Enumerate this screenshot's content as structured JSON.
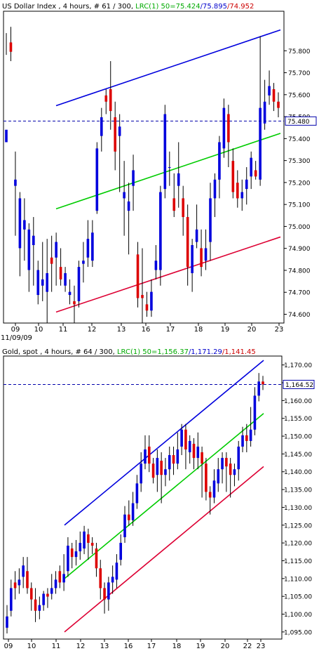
{
  "chart_data": [
    {
      "type": "candlestick",
      "title_parts": [
        {
          "text": "US Dollar Index , 4 hours, # 61 / 300, ",
          "color": "#000000"
        },
        {
          "text": "LRC(1) 50=75.424",
          "color": "#00aa00"
        },
        {
          "text": "/75.895",
          "color": "#0000cc"
        },
        {
          "text": "/74.952",
          "color": "#cc0000"
        }
      ],
      "ylim": [
        74.56,
        75.98
      ],
      "yticks": [
        "75.800",
        "75.700",
        "75.600",
        "75.500",
        "75.400",
        "75.300",
        "75.200",
        "75.100",
        "75.000",
        "74.900",
        "74.800",
        "74.700",
        "74.600"
      ],
      "ytick_values": [
        75.8,
        75.7,
        75.6,
        75.5,
        75.4,
        75.3,
        75.2,
        75.1,
        75.0,
        74.9,
        74.8,
        74.7,
        74.6
      ],
      "x_labels": [
        "09",
        "10",
        "11",
        "12",
        "13",
        "16",
        "17",
        "18",
        "19",
        "20",
        "23"
      ],
      "x_label_positions": [
        22,
        55,
        90,
        131,
        173,
        208,
        243,
        283,
        321,
        359,
        398
      ],
      "current_price": 75.48,
      "current_price_label": "75.480",
      "bars_count": 61,
      "regression": {
        "mid": [
          75.08,
          75.424
        ],
        "upper": [
          75.55,
          75.895
        ],
        "lower": [
          74.61,
          74.952
        ]
      },
      "colors": {
        "up": "#0000dd",
        "down": "#dd0000",
        "mid": "#00cc00",
        "upper": "#0000dd",
        "lower": "#dd0033",
        "price_line": "#0000aa"
      }
    },
    {
      "type": "candlestick",
      "title_parts": [
        {
          "text": "Gold, spot , 4 hours, # 64 / 300, ",
          "color": "#000000"
        },
        {
          "text": "LRC(1) 50=1,156.37",
          "color": "#00aa00"
        },
        {
          "text": "/1,171.29",
          "color": "#0000cc"
        },
        {
          "text": "/1,141.45",
          "color": "#cc0000"
        }
      ],
      "ylim": [
        1093.0,
        1172.5
      ],
      "yticks": [
        "1,170.00",
        "1,165.00",
        "1,160.00",
        "1,155.00",
        "1,150.00",
        "1,145.00",
        "1,140.00",
        "1,135.00",
        "1,130.00",
        "1,125.00",
        "1,120.00",
        "1,115.00",
        "1,110.00",
        "1,105.00",
        "1,100.00",
        "1,095.00"
      ],
      "ytick_values": [
        1170,
        1165,
        1160,
        1155,
        1150,
        1145,
        1140,
        1135,
        1130,
        1125,
        1120,
        1115,
        1110,
        1105,
        1100,
        1095
      ],
      "x_labels": [
        "09",
        "10",
        "11",
        "12",
        "13",
        "16",
        "17",
        "18",
        "19",
        "20",
        "22",
        "23"
      ],
      "x_label_positions": [
        12,
        45,
        80,
        115,
        149,
        183,
        216,
        252,
        286,
        321,
        353,
        372
      ],
      "current_price": 1164.52,
      "current_price_label": "1,164.52",
      "bars_count": 64,
      "regression": {
        "mid": [
          1110.0,
          1156.37
        ],
        "upper": [
          1125.0,
          1171.29
        ],
        "lower": [
          1095.0,
          1141.45
        ]
      },
      "colors": {
        "up": "#0000dd",
        "down": "#dd0000",
        "mid": "#00cc00",
        "upper": "#0000dd",
        "lower": "#dd0033",
        "price_line": "#0000aa"
      }
    }
  ],
  "date_label": "11/09/09"
}
